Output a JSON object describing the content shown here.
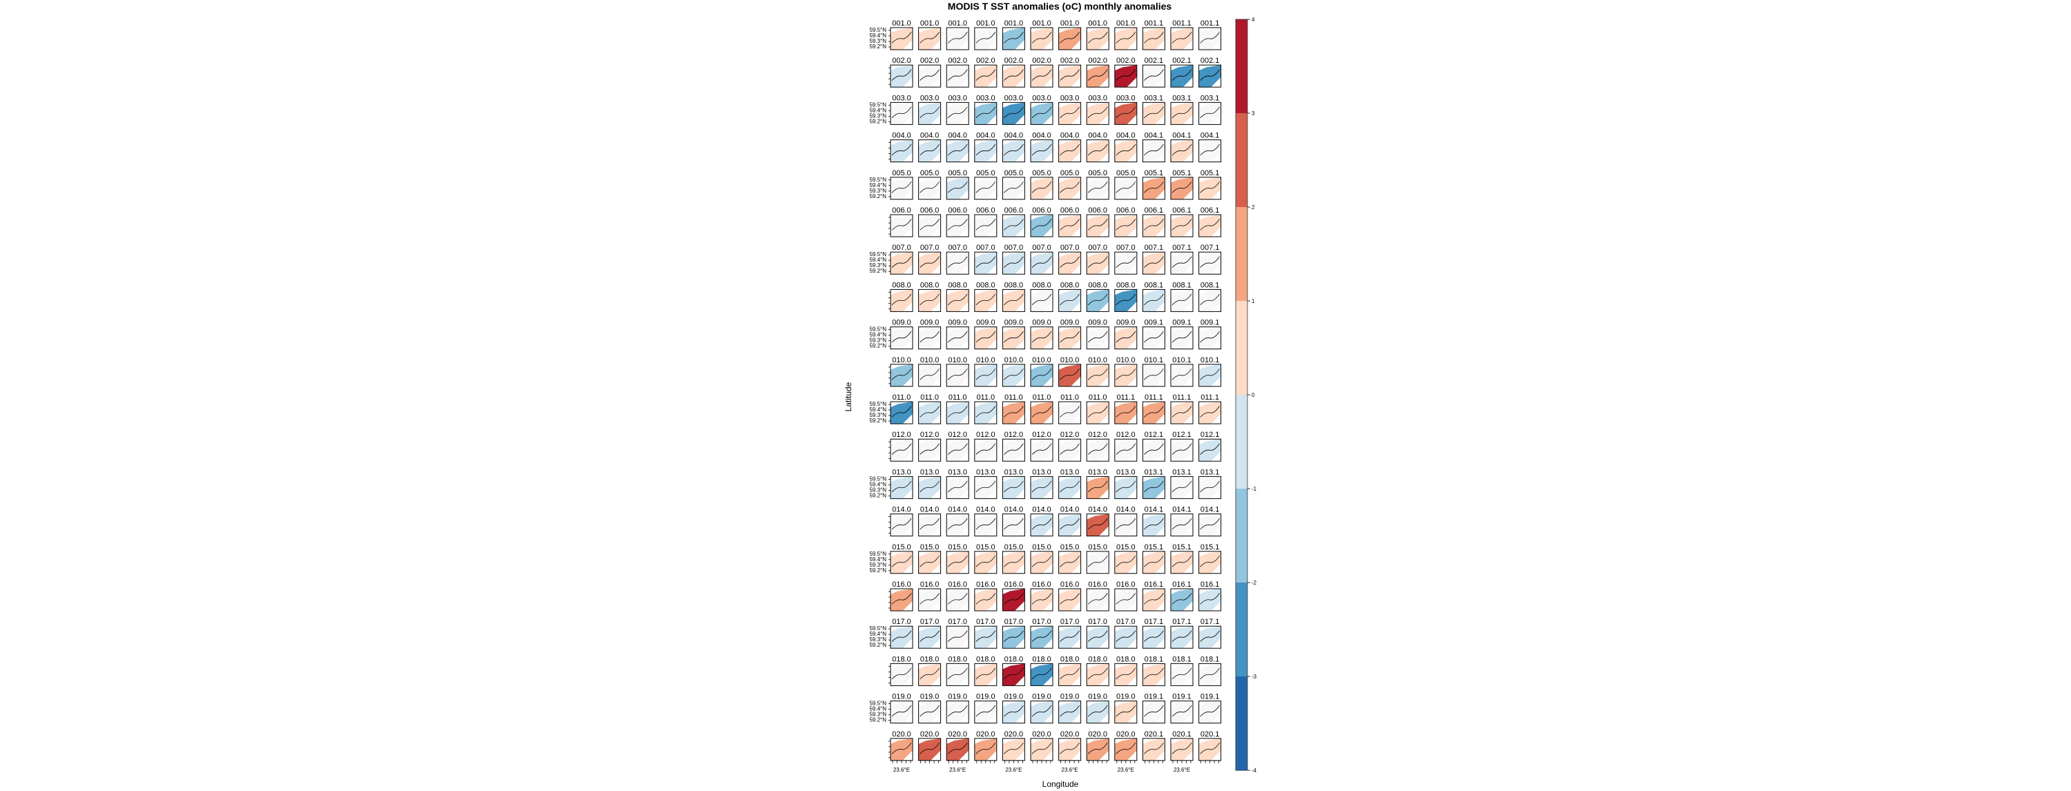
{
  "chart_data": {
    "type": "heatmap",
    "title": "MODIS T SST anomalies (oC) monthly anomalies",
    "xlabel": "Longitude",
    "ylabel": "Latitude",
    "x_tick_label": "23.6°E",
    "y_tick_labels": [
      "59.5°N",
      "59.4°N",
      "59.3°N",
      "59.2°N"
    ],
    "colorbar": {
      "range": [
        -4,
        4
      ],
      "ticks": [
        "4",
        "3",
        "2",
        "1",
        "0",
        "-1",
        "-2",
        "-3",
        "-4"
      ],
      "colors": [
        "#b2182b",
        "#d6604d",
        "#f4a582",
        "#fddbc7",
        "#f7f7f7",
        "#d1e5f0",
        "#92c5de",
        "#4393c3",
        "#2166ac"
      ]
    },
    "panel_labels": [
      [
        "001.0",
        "001.0",
        "001.0",
        "001.0",
        "001.0",
        "001.0",
        "001.0",
        "001.0",
        "001.0",
        "001.1",
        "001.1",
        "001.1"
      ],
      [
        "002.0",
        "002.0",
        "002.0",
        "002.0",
        "002.0",
        "002.0",
        "002.0",
        "002.0",
        "002.0",
        "002.1",
        "002.1",
        "002.1"
      ],
      [
        "003.0",
        "003.0",
        "003.0",
        "003.0",
        "003.0",
        "003.0",
        "003.0",
        "003.0",
        "003.0",
        "003.1",
        "003.1",
        "003.1"
      ],
      [
        "004.0",
        "004.0",
        "004.0",
        "004.0",
        "004.0",
        "004.0",
        "004.0",
        "004.0",
        "004.0",
        "004.1",
        "004.1",
        "004.1"
      ],
      [
        "005.0",
        "005.0",
        "005.0",
        "005.0",
        "005.0",
        "005.0",
        "005.0",
        "005.0",
        "005.0",
        "005.1",
        "005.1",
        "005.1"
      ],
      [
        "006.0",
        "006.0",
        "006.0",
        "006.0",
        "006.0",
        "006.0",
        "006.0",
        "006.0",
        "006.0",
        "006.1",
        "006.1",
        "006.1"
      ],
      [
        "007.0",
        "007.0",
        "007.0",
        "007.0",
        "007.0",
        "007.0",
        "007.0",
        "007.0",
        "007.0",
        "007.1",
        "007.1",
        "007.1"
      ],
      [
        "008.0",
        "008.0",
        "008.0",
        "008.0",
        "008.0",
        "008.0",
        "008.0",
        "008.0",
        "008.0",
        "008.1",
        "008.1",
        "008.1"
      ],
      [
        "009.0",
        "009.0",
        "009.0",
        "009.0",
        "009.0",
        "009.0",
        "009.0",
        "009.0",
        "009.0",
        "009.1",
        "009.1",
        "009.1"
      ],
      [
        "010.0",
        "010.0",
        "010.0",
        "010.0",
        "010.0",
        "010.0",
        "010.0",
        "010.0",
        "010.0",
        "010.1",
        "010.1",
        "010.1"
      ],
      [
        "011.0",
        "011.0",
        "011.0",
        "011.0",
        "011.0",
        "011.0",
        "011.0",
        "011.0",
        "011.1",
        "011.1",
        "011.1",
        "011.1"
      ],
      [
        "012.0",
        "012.0",
        "012.0",
        "012.0",
        "012.0",
        "012.0",
        "012.0",
        "012.0",
        "012.0",
        "012.1",
        "012.1",
        "012.1"
      ],
      [
        "013.0",
        "013.0",
        "013.0",
        "013.0",
        "013.0",
        "013.0",
        "013.0",
        "013.0",
        "013.0",
        "013.1",
        "013.1",
        "013.1"
      ],
      [
        "014.0",
        "014.0",
        "014.0",
        "014.0",
        "014.0",
        "014.0",
        "014.0",
        "014.0",
        "014.0",
        "014.1",
        "014.1",
        "014.1"
      ],
      [
        "015.0",
        "015.0",
        "015.0",
        "015.0",
        "015.0",
        "015.0",
        "015.0",
        "015.0",
        "015.0",
        "015.1",
        "015.1",
        "015.1"
      ],
      [
        "016.0",
        "016.0",
        "016.0",
        "016.0",
        "016.0",
        "016.0",
        "016.0",
        "016.0",
        "016.0",
        "016.1",
        "016.1",
        "016.1"
      ],
      [
        "017.0",
        "017.0",
        "017.0",
        "017.0",
        "017.0",
        "017.0",
        "017.0",
        "017.0",
        "017.0",
        "017.1",
        "017.1",
        "017.1"
      ],
      [
        "018.0",
        "018.0",
        "018.0",
        "018.0",
        "018.0",
        "018.0",
        "018.0",
        "018.0",
        "018.0",
        "018.1",
        "018.1",
        "018.1"
      ],
      [
        "019.0",
        "019.0",
        "019.0",
        "019.0",
        "019.0",
        "019.0",
        "019.0",
        "019.0",
        "019.0",
        "019.1",
        "019.1",
        "019.1"
      ],
      [
        "020.0",
        "020.0",
        "020.0",
        "020.0",
        "020.0",
        "020.0",
        "020.0",
        "020.0",
        "020.0",
        "020.1",
        "020.1",
        "020.1"
      ]
    ],
    "anomalies": [
      [
        1,
        1,
        0,
        0,
        -2,
        1,
        2,
        1,
        1,
        1,
        1,
        0
      ],
      [
        -1,
        0,
        0,
        1,
        1,
        1,
        1,
        2,
        4,
        0,
        -3,
        -3
      ],
      [
        0,
        -1,
        0,
        -2,
        -3,
        -2,
        1,
        1,
        3,
        1,
        1,
        0
      ],
      [
        -1,
        -1,
        -1,
        -1,
        -1,
        -1,
        1,
        1,
        1,
        0,
        1,
        0
      ],
      [
        0,
        0,
        -1,
        0,
        0,
        1,
        1,
        0,
        0,
        2,
        2,
        1
      ],
      [
        0,
        0,
        0,
        0,
        -1,
        -2,
        1,
        1,
        1,
        1,
        1,
        1
      ],
      [
        1,
        1,
        0,
        -1,
        -1,
        -1,
        1,
        1,
        0,
        1,
        0,
        0
      ],
      [
        1,
        1,
        1,
        1,
        1,
        0,
        -1,
        -2,
        -3,
        -1,
        0,
        0
      ],
      [
        0,
        0,
        0,
        1,
        1,
        1,
        1,
        0,
        1,
        0,
        0,
        0
      ],
      [
        -2,
        0,
        0,
        -1,
        -1,
        -2,
        3,
        1,
        1,
        0,
        0,
        -1
      ],
      [
        -3,
        -1,
        -1,
        -1,
        2,
        2,
        0,
        1,
        2,
        2,
        1,
        1
      ],
      [
        0,
        0,
        0,
        0,
        0,
        0,
        0,
        0,
        0,
        0,
        0,
        -1
      ],
      [
        -1,
        -1,
        0,
        0,
        -1,
        -1,
        -1,
        2,
        -1,
        -2,
        0,
        0
      ],
      [
        0,
        0,
        0,
        0,
        0,
        -1,
        -1,
        3,
        0,
        -1,
        0,
        0
      ],
      [
        1,
        1,
        1,
        1,
        1,
        1,
        1,
        0,
        1,
        1,
        1,
        1
      ],
      [
        2,
        0,
        0,
        1,
        4,
        1,
        1,
        0,
        0,
        1,
        -2,
        -1
      ],
      [
        -1,
        -1,
        0,
        -1,
        -2,
        -2,
        -1,
        -1,
        -1,
        -1,
        -1,
        -1
      ],
      [
        0,
        1,
        0,
        1,
        4,
        -3,
        1,
        1,
        1,
        1,
        0,
        0
      ],
      [
        0,
        0,
        0,
        0,
        -1,
        -1,
        -1,
        -1,
        1,
        0,
        0,
        0
      ],
      [
        2,
        3,
        3,
        2,
        1,
        1,
        1,
        2,
        2,
        1,
        1,
        1
      ]
    ]
  }
}
